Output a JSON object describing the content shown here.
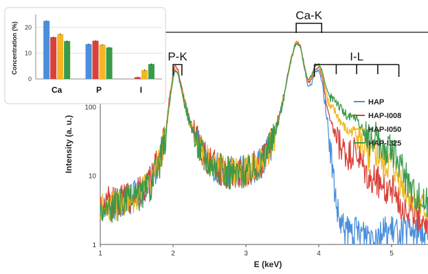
{
  "chart_data": [
    {
      "type": "line",
      "xlabel": "E (keV)",
      "ylabel": "Intensity (a. u.)",
      "xlim": [
        1,
        5.5
      ],
      "ylim": [
        1,
        1200
      ],
      "yscale": "log",
      "x_ticks": [
        "1",
        "2",
        "3",
        "4",
        "5"
      ],
      "y_ticks": [
        "1",
        "10",
        "100"
      ],
      "legend_position": "right",
      "series": [
        {
          "name": "HAP",
          "color": "#4a8fdc",
          "points": [
            [
              1.0,
              3.5
            ],
            [
              1.2,
              4
            ],
            [
              1.4,
              4.5
            ],
            [
              1.55,
              5.5
            ],
            [
              1.7,
              8
            ],
            [
              1.8,
              14
            ],
            [
              1.9,
              40
            ],
            [
              1.95,
              120
            ],
            [
              2.0,
              260
            ],
            [
              2.03,
              330
            ],
            [
              2.07,
              280
            ],
            [
              2.12,
              170
            ],
            [
              2.2,
              75
            ],
            [
              2.3,
              35
            ],
            [
              2.4,
              22
            ],
            [
              2.5,
              16
            ],
            [
              2.6,
              13
            ],
            [
              2.75,
              11
            ],
            [
              2.9,
              11
            ],
            [
              3.05,
              12
            ],
            [
              3.2,
              15
            ],
            [
              3.3,
              22
            ],
            [
              3.4,
              40
            ],
            [
              3.5,
              110
            ],
            [
              3.6,
              380
            ],
            [
              3.67,
              750
            ],
            [
              3.7,
              850
            ],
            [
              3.75,
              720
            ],
            [
              3.8,
              380
            ],
            [
              3.85,
              200
            ],
            [
              3.9,
              210
            ],
            [
              3.95,
              320
            ],
            [
              4.0,
              330
            ],
            [
              4.05,
              220
            ],
            [
              4.1,
              90
            ],
            [
              4.15,
              30
            ],
            [
              4.2,
              9
            ],
            [
              4.25,
              3
            ],
            [
              4.3,
              1.8
            ],
            [
              4.4,
              1.5
            ],
            [
              4.6,
              1.5
            ],
            [
              4.8,
              1.5
            ],
            [
              5.0,
              1.5
            ],
            [
              5.2,
              1.5
            ],
            [
              5.5,
              1.5
            ]
          ]
        },
        {
          "name": "HAP-I008",
          "color": "#d9413a",
          "points": [
            [
              1.0,
              3.8
            ],
            [
              1.2,
              4.2
            ],
            [
              1.4,
              4.8
            ],
            [
              1.55,
              6
            ],
            [
              1.7,
              9
            ],
            [
              1.8,
              16
            ],
            [
              1.9,
              45
            ],
            [
              1.95,
              140
            ],
            [
              2.0,
              310
            ],
            [
              2.03,
              400
            ],
            [
              2.07,
              330
            ],
            [
              2.12,
              190
            ],
            [
              2.2,
              80
            ],
            [
              2.3,
              36
            ],
            [
              2.4,
              23
            ],
            [
              2.5,
              16
            ],
            [
              2.6,
              13
            ],
            [
              2.75,
              11
            ],
            [
              2.9,
              11
            ],
            [
              3.05,
              12
            ],
            [
              3.2,
              15
            ],
            [
              3.3,
              22
            ],
            [
              3.4,
              42
            ],
            [
              3.5,
              115
            ],
            [
              3.6,
              400
            ],
            [
              3.67,
              800
            ],
            [
              3.7,
              890
            ],
            [
              3.75,
              750
            ],
            [
              3.8,
              400
            ],
            [
              3.85,
              220
            ],
            [
              3.9,
              250
            ],
            [
              3.95,
              360
            ],
            [
              4.0,
              370
            ],
            [
              4.05,
              260
            ],
            [
              4.1,
              120
            ],
            [
              4.15,
              60
            ],
            [
              4.2,
              45
            ],
            [
              4.25,
              32
            ],
            [
              4.3,
              25
            ],
            [
              4.4,
              18
            ],
            [
              4.5,
              22
            ],
            [
              4.6,
              13
            ],
            [
              4.7,
              8
            ],
            [
              4.8,
              9
            ],
            [
              4.9,
              6
            ],
            [
              5.0,
              7
            ],
            [
              5.1,
              4
            ],
            [
              5.2,
              3.5
            ],
            [
              5.3,
              3
            ],
            [
              5.4,
              2.5
            ],
            [
              5.5,
              2.2
            ]
          ]
        },
        {
          "name": "HAP-I050",
          "color": "#f2b722",
          "points": [
            [
              1.0,
              3.2
            ],
            [
              1.2,
              3.8
            ],
            [
              1.4,
              4.5
            ],
            [
              1.55,
              5.5
            ],
            [
              1.7,
              8
            ],
            [
              1.8,
              14
            ],
            [
              1.9,
              42
            ],
            [
              1.95,
              125
            ],
            [
              2.0,
              280
            ],
            [
              2.03,
              360
            ],
            [
              2.07,
              300
            ],
            [
              2.12,
              175
            ],
            [
              2.2,
              76
            ],
            [
              2.3,
              35
            ],
            [
              2.4,
              22
            ],
            [
              2.5,
              16
            ],
            [
              2.6,
              13
            ],
            [
              2.75,
              11
            ],
            [
              2.9,
              11
            ],
            [
              3.05,
              12
            ],
            [
              3.2,
              15
            ],
            [
              3.3,
              22
            ],
            [
              3.4,
              41
            ],
            [
              3.5,
              112
            ],
            [
              3.6,
              390
            ],
            [
              3.67,
              780
            ],
            [
              3.7,
              870
            ],
            [
              3.75,
              735
            ],
            [
              3.8,
              390
            ],
            [
              3.85,
              230
            ],
            [
              3.9,
              270
            ],
            [
              3.95,
              390
            ],
            [
              4.0,
              400
            ],
            [
              4.05,
              300
            ],
            [
              4.1,
              160
            ],
            [
              4.15,
              95
            ],
            [
              4.2,
              90
            ],
            [
              4.25,
              75
            ],
            [
              4.3,
              60
            ],
            [
              4.4,
              42
            ],
            [
              4.5,
              45
            ],
            [
              4.6,
              28
            ],
            [
              4.7,
              18
            ],
            [
              4.8,
              20
            ],
            [
              4.9,
              13
            ],
            [
              5.0,
              15
            ],
            [
              5.1,
              9
            ],
            [
              5.2,
              6
            ],
            [
              5.3,
              4.5
            ],
            [
              5.4,
              3.5
            ],
            [
              5.5,
              3
            ]
          ]
        },
        {
          "name": "HAP-I325",
          "color": "#3a9a48",
          "points": [
            [
              1.0,
              3.0
            ],
            [
              1.2,
              3.6
            ],
            [
              1.4,
              4.3
            ],
            [
              1.55,
              5.2
            ],
            [
              1.7,
              7.5
            ],
            [
              1.8,
              13
            ],
            [
              1.9,
              38
            ],
            [
              1.95,
              115
            ],
            [
              2.0,
              265
            ],
            [
              2.03,
              345
            ],
            [
              2.07,
              290
            ],
            [
              2.12,
              170
            ],
            [
              2.2,
              74
            ],
            [
              2.3,
              34
            ],
            [
              2.4,
              22
            ],
            [
              2.5,
              16
            ],
            [
              2.6,
              13
            ],
            [
              2.75,
              11
            ],
            [
              2.9,
              11
            ],
            [
              3.05,
              12
            ],
            [
              3.2,
              15
            ],
            [
              3.3,
              22
            ],
            [
              3.4,
              40
            ],
            [
              3.5,
              110
            ],
            [
              3.6,
              385
            ],
            [
              3.67,
              760
            ],
            [
              3.7,
              860
            ],
            [
              3.75,
              725
            ],
            [
              3.8,
              385
            ],
            [
              3.85,
              235
            ],
            [
              3.9,
              280
            ],
            [
              3.95,
              400
            ],
            [
              4.0,
              410
            ],
            [
              4.05,
              320
            ],
            [
              4.1,
              190
            ],
            [
              4.15,
              130
            ],
            [
              4.2,
              140
            ],
            [
              4.25,
              120
            ],
            [
              4.3,
              95
            ],
            [
              4.4,
              70
            ],
            [
              4.5,
              70
            ],
            [
              4.6,
              45
            ],
            [
              4.7,
              32
            ],
            [
              4.8,
              35
            ],
            [
              4.9,
              22
            ],
            [
              5.0,
              24
            ],
            [
              5.1,
              15
            ],
            [
              5.2,
              9
            ],
            [
              5.3,
              6
            ],
            [
              5.4,
              4.5
            ],
            [
              5.5,
              4
            ]
          ]
        }
      ],
      "annotations": [
        {
          "label": "P-K",
          "x_range": [
            2.0,
            2.12
          ]
        },
        {
          "label": "Ca-K",
          "x_range": [
            3.69,
            4.04
          ]
        },
        {
          "label": "I-L",
          "ticks_x": [
            3.94,
            4.24,
            4.52,
            4.81,
            5.1
          ]
        }
      ]
    },
    {
      "type": "bar",
      "ylabel": "Concentration (%)",
      "categories": [
        "Ca",
        "P",
        "I"
      ],
      "ylim": [
        0,
        25
      ],
      "y_ticks": [
        "0",
        "10",
        "20"
      ],
      "series": [
        {
          "color": "#4a8fdc",
          "values": [
            22.5,
            13.5,
            0
          ]
        },
        {
          "color": "#d9413a",
          "values": [
            16.2,
            14.8,
            0.7
          ]
        },
        {
          "color": "#f2b722",
          "values": [
            17.4,
            13.3,
            3.5
          ]
        },
        {
          "color": "#3a9a48",
          "values": [
            14.7,
            12.2,
            5.8
          ]
        }
      ]
    }
  ]
}
